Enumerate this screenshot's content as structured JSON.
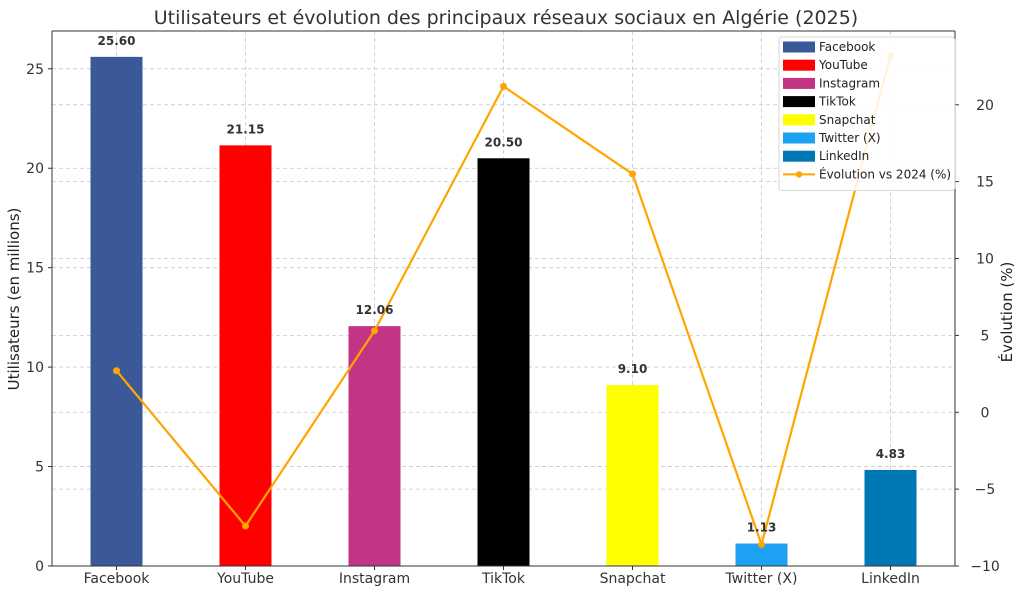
{
  "chart_data": {
    "type": "bar",
    "title": "Utilisateurs et évolution des principaux réseaux sociaux en Algérie (2025)",
    "categories": [
      "Facebook",
      "YouTube",
      "Instagram",
      "TikTok",
      "Snapchat",
      "Twitter (X)",
      "LinkedIn"
    ],
    "series": [
      {
        "name": "Utilisateurs (en millions)",
        "values": [
          25.6,
          21.15,
          12.06,
          20.5,
          9.1,
          1.13,
          4.83
        ],
        "value_labels": [
          "25.60",
          "21.15",
          "12.06",
          "20.50",
          "9.10",
          "1.13",
          "4.83"
        ],
        "colors": [
          "#3b5998",
          "#ff0000",
          "#c13584",
          "#000000",
          "#ffff00",
          "#1da1f2",
          "#0077b5"
        ],
        "axis": "left"
      },
      {
        "name": "Évolution vs 2024 (%)",
        "type": "line",
        "values": [
          2.7,
          -7.4,
          5.3,
          21.2,
          15.5,
          -8.6,
          23.2
        ],
        "color": "#ffa500",
        "axis": "right"
      }
    ],
    "ylabel": "Utilisateurs (en millions)",
    "ylabel_right": "Évolution (%)",
    "ylim": [
      0,
      26.9
    ],
    "ylim_right": [
      -10,
      24.8
    ],
    "yticks": [
      0,
      5,
      10,
      15,
      20,
      25
    ],
    "ytick_labels": [
      "0",
      "5",
      "10",
      "15",
      "20",
      "25"
    ],
    "yticks_right": [
      -10,
      -5,
      0,
      5,
      10,
      15,
      20
    ],
    "ytick_labels_right": [
      "−10",
      "−5",
      "0",
      "5",
      "10",
      "15",
      "20"
    ],
    "grid": true,
    "legend_position": "top-right",
    "legend": [
      "Facebook",
      "YouTube",
      "Instagram",
      "TikTok",
      "Snapchat",
      "Twitter (X)",
      "LinkedIn",
      "Évolution vs 2024 (%)"
    ]
  }
}
